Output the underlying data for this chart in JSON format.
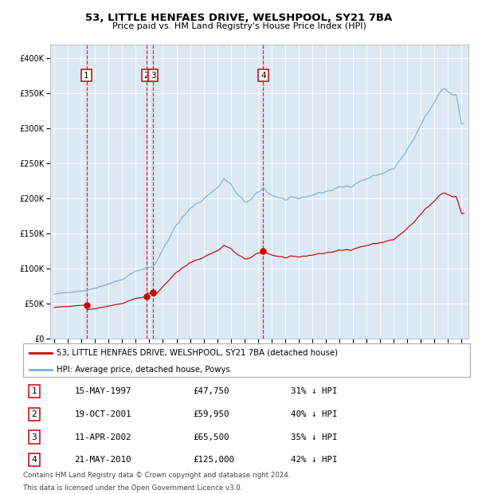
{
  "title": "53, LITTLE HENFAES DRIVE, WELSHPOOL, SY21 7BA",
  "subtitle": "Price paid vs. HM Land Registry's House Price Index (HPI)",
  "sales": [
    {
      "label": "1",
      "date": "15-MAY-1997",
      "price": 47750,
      "year": 1997.37,
      "pct": "31% ↓ HPI"
    },
    {
      "label": "2",
      "date": "19-OCT-2001",
      "price": 59950,
      "year": 2001.8,
      "pct": "40% ↓ HPI"
    },
    {
      "label": "3",
      "date": "11-APR-2002",
      "price": 65500,
      "year": 2002.28,
      "pct": "35% ↓ HPI"
    },
    {
      "label": "4",
      "date": "21-MAY-2010",
      "price": 125000,
      "year": 2010.38,
      "pct": "42% ↓ HPI"
    }
  ],
  "legend1": "53, LITTLE HENFAES DRIVE, WELSHPOOL, SY21 7BA (detached house)",
  "legend2": "HPI: Average price, detached house, Powys",
  "footnote1": "Contains HM Land Registry data © Crown copyright and database right 2024.",
  "footnote2": "This data is licensed under the Open Government Licence v3.0.",
  "property_color": "#cc0000",
  "hpi_color": "#7aaed6",
  "background_color": "#dce9f5",
  "ylim": [
    0,
    420000
  ],
  "xlim_start": 1994.7,
  "xlim_end": 2025.5,
  "hpi_anchors": [
    [
      1995.0,
      63000
    ],
    [
      1996.0,
      66000
    ],
    [
      1997.0,
      68000
    ],
    [
      1997.37,
      68500
    ],
    [
      1998.0,
      72000
    ],
    [
      1999.0,
      78000
    ],
    [
      2000.0,
      84000
    ],
    [
      2001.0,
      96000
    ],
    [
      2001.8,
      101000
    ],
    [
      2002.28,
      102000
    ],
    [
      2002.5,
      108000
    ],
    [
      2003.0,
      128000
    ],
    [
      2004.0,
      162000
    ],
    [
      2005.0,
      185000
    ],
    [
      2006.0,
      200000
    ],
    [
      2007.0,
      215000
    ],
    [
      2007.5,
      228000
    ],
    [
      2008.0,
      220000
    ],
    [
      2008.5,
      205000
    ],
    [
      2009.0,
      195000
    ],
    [
      2009.5,
      198000
    ],
    [
      2010.0,
      208000
    ],
    [
      2010.38,
      215000
    ],
    [
      2011.0,
      205000
    ],
    [
      2012.0,
      198000
    ],
    [
      2013.0,
      200000
    ],
    [
      2014.0,
      205000
    ],
    [
      2015.0,
      210000
    ],
    [
      2016.0,
      215000
    ],
    [
      2017.0,
      220000
    ],
    [
      2018.0,
      228000
    ],
    [
      2019.0,
      235000
    ],
    [
      2020.0,
      242000
    ],
    [
      2021.0,
      268000
    ],
    [
      2021.5,
      285000
    ],
    [
      2022.0,
      305000
    ],
    [
      2022.5,
      322000
    ],
    [
      2023.0,
      338000
    ],
    [
      2023.3,
      350000
    ],
    [
      2023.5,
      355000
    ],
    [
      2023.8,
      360000
    ],
    [
      2024.0,
      355000
    ],
    [
      2024.3,
      345000
    ],
    [
      2024.6,
      350000
    ],
    [
      2025.0,
      305000
    ]
  ]
}
